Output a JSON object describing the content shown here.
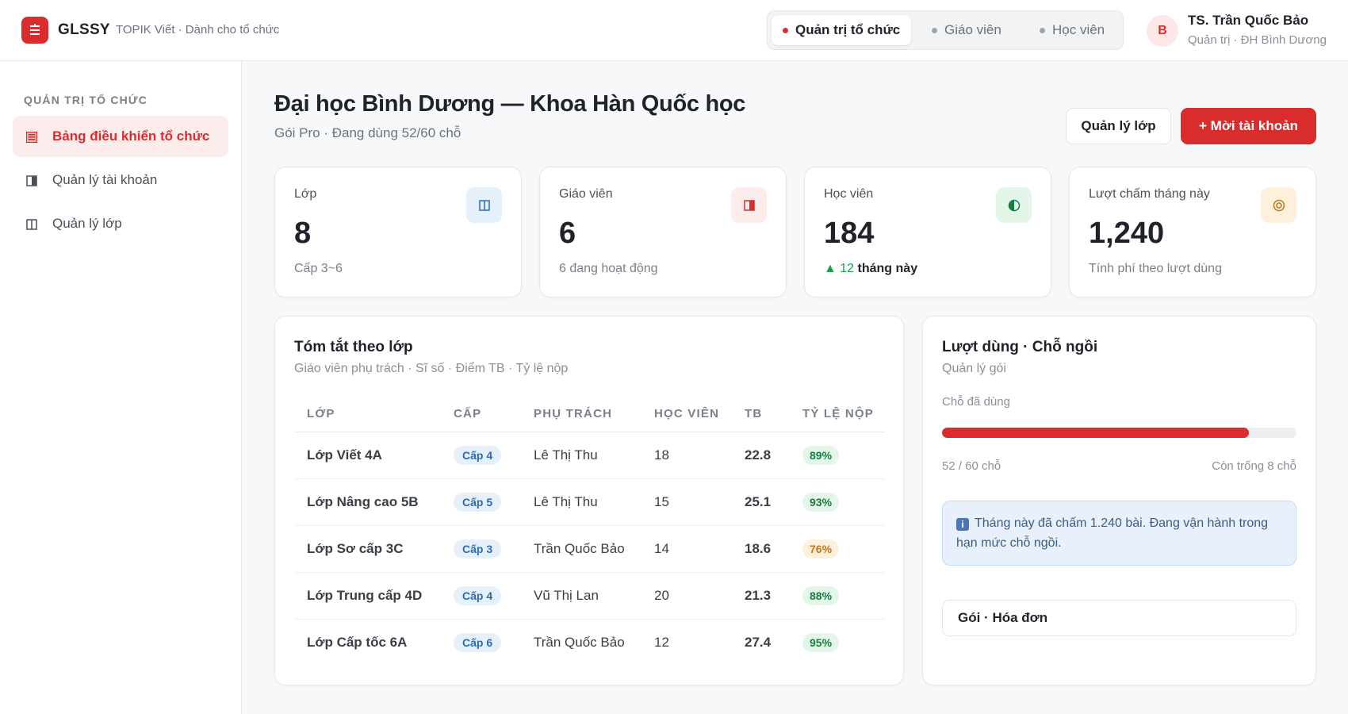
{
  "app": {
    "brand": "GLSSY",
    "subtitle": "TOPIK Viết · Dành cho tổ chức",
    "accent": "#d92d2d"
  },
  "roles": [
    {
      "label": "Quản trị tổ chức",
      "active": true
    },
    {
      "label": "Giáo viên",
      "active": false
    },
    {
      "label": "Học viên",
      "active": false
    }
  ],
  "user": {
    "initial": "B",
    "name": "TS. Trần Quốc Bảo",
    "role": "Quản trị · ĐH Bình Dương"
  },
  "sidebar": {
    "heading": "QUẢN TRỊ TỔ CHỨC",
    "items": [
      {
        "label": "Bảng điều khiển tổ chức",
        "icon": "dashboard-icon",
        "active": true
      },
      {
        "label": "Quản lý tài khoản",
        "icon": "accounts-icon",
        "active": false
      },
      {
        "label": "Quản lý lớp",
        "icon": "classes-icon",
        "active": false
      }
    ]
  },
  "header": {
    "title": "Đại học Bình Dương — Khoa Hàn Quốc học",
    "subtitle": "Gói Pro · Đang dùng 52/60 chỗ",
    "manage_classes_label": "Quản lý lớp",
    "invite_label": "+ Mời tài khoản"
  },
  "stats": [
    {
      "label": "Lớp",
      "value": "8",
      "foot": "Cấp 3~6",
      "icon": "classes-icon",
      "icon_bg": "#e6f0fb",
      "icon_color": "#2b6cb0"
    },
    {
      "label": "Giáo viên",
      "value": "6",
      "foot": "6 đang hoạt động",
      "icon": "teacher-icon",
      "icon_bg": "#fdecec",
      "icon_color": "#d92d2d"
    },
    {
      "label": "Học viên",
      "value": "184",
      "foot_up": "▲ 12",
      "foot_rest": "tháng này",
      "icon": "student-icon",
      "icon_bg": "#e4f6ea",
      "icon_color": "#15803d"
    },
    {
      "label": "Lượt chấm tháng này",
      "value": "1,240",
      "foot": "Tính phí theo lượt dùng",
      "icon": "target-icon",
      "icon_bg": "#fdf1dc",
      "icon_color": "#c2761a"
    }
  ],
  "class_summary": {
    "title": "Tóm tắt theo lớp",
    "subtitle": "Giáo viên phụ trách · Sĩ số · Điểm TB · Tỷ lệ nộp",
    "columns": [
      "LỚP",
      "CẤP",
      "PHỤ TRÁCH",
      "HỌC VIÊN",
      "TB",
      "TỶ LỆ NỘP"
    ],
    "rows": [
      {
        "name": "Lớp Viết 4A",
        "level": "Cấp 4",
        "teacher": "Lê Thị Thu",
        "students": "18",
        "avg": "22.8",
        "rate": "89%",
        "rate_status": "good"
      },
      {
        "name": "Lớp Nâng cao 5B",
        "level": "Cấp 5",
        "teacher": "Lê Thị Thu",
        "students": "15",
        "avg": "25.1",
        "rate": "93%",
        "rate_status": "good"
      },
      {
        "name": "Lớp Sơ cấp 3C",
        "level": "Cấp 3",
        "teacher": "Trần Quốc Bảo",
        "students": "14",
        "avg": "18.6",
        "rate": "76%",
        "rate_status": "mid"
      },
      {
        "name": "Lớp Trung cấp 4D",
        "level": "Cấp 4",
        "teacher": "Vũ Thị Lan",
        "students": "20",
        "avg": "21.3",
        "rate": "88%",
        "rate_status": "good"
      },
      {
        "name": "Lớp Cấp tốc 6A",
        "level": "Cấp 6",
        "teacher": "Trần Quốc Bảo",
        "students": "12",
        "avg": "27.4",
        "rate": "95%",
        "rate_status": "good"
      }
    ]
  },
  "usage": {
    "title": "Lượt dùng · Chỗ ngồi",
    "subtitle": "Quản lý gói",
    "seats_label": "Chỗ đã dùng",
    "seats_used": 52,
    "seats_total": 60,
    "used_text": "52 / 60 chỗ",
    "remaining_text": "Còn trống 8 chỗ",
    "info_text": "Tháng này đã chấm 1.240 bài. Đang vận hành trong hạn mức chỗ ngồi.",
    "plan_button_label": "Gói · Hóa đơn"
  }
}
